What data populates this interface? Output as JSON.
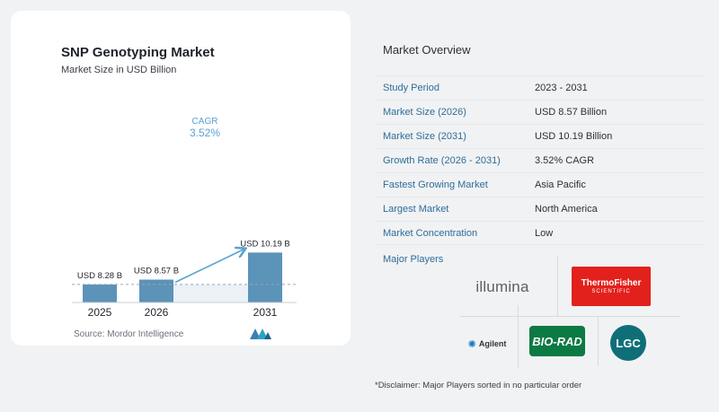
{
  "chart_data": {
    "type": "bar",
    "title": "SNP Genotyping Market",
    "subtitle": "Market Size in USD Billion",
    "categories": [
      "2025",
      "2026",
      "2031"
    ],
    "values": [
      8.28,
      8.57,
      10.19
    ],
    "data_labels": [
      "USD 8.28 B",
      "USD 8.57 B",
      "USD 10.19 B"
    ],
    "cagr_label": "CAGR",
    "cagr_value": "3.52%",
    "colors": {
      "bar": "#5b93b9",
      "cagr": "#5ba2cf",
      "band": "#eaf1f7",
      "dash": "#9aa6b2"
    }
  },
  "source": "Source:  Mordor Intelligence",
  "overview": {
    "title": "Market Overview",
    "rows": [
      {
        "label": "Study Period",
        "value": "2023 - 2031"
      },
      {
        "label": "Market Size (2026)",
        "value": "USD 8.57 Billion"
      },
      {
        "label": "Market Size (2031)",
        "value": "USD 10.19 Billion"
      },
      {
        "label": "Growth Rate (2026 - 2031)",
        "value": "3.52% CAGR"
      },
      {
        "label": "Fastest Growing Market",
        "value": "Asia Pacific"
      },
      {
        "label": "Largest Market",
        "value": "North America"
      },
      {
        "label": "Market Concentration",
        "value": "Low"
      }
    ]
  },
  "players": {
    "title": "Major Players",
    "illumina": "illumina",
    "thermo_line1": "ThermoFisher",
    "thermo_line2": "SCIENTIFIC",
    "agilent": "Agilent",
    "biorad": "BIO-RAD",
    "lgc": "LGC"
  },
  "disclaimer": "*Disclaimer: Major Players sorted in no particular order"
}
